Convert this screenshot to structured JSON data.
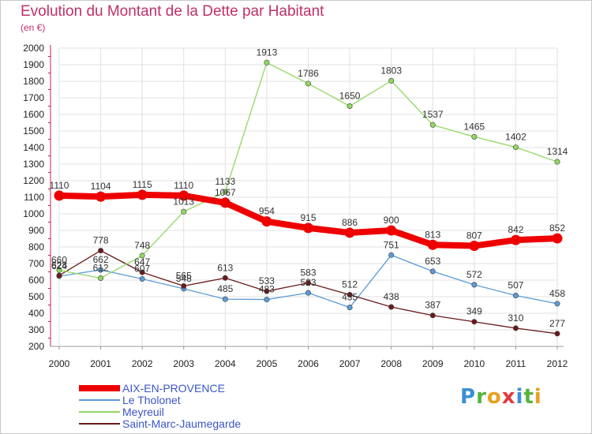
{
  "title": "Evolution du Montant de la Dette par Habitant",
  "subtitle": "(en €)",
  "logo": {
    "text": "Proxiti",
    "letters": [
      {
        "ch": "P",
        "color": "#3a8fd6"
      },
      {
        "ch": "r",
        "color": "#58b33b"
      },
      {
        "ch": "o",
        "color": "#e8a020"
      },
      {
        "ch": "x",
        "color": "#e03c3c"
      },
      {
        "ch": "i",
        "color": "#3a8fd6"
      },
      {
        "ch": "t",
        "color": "#58b33b"
      },
      {
        "ch": "i",
        "color": "#e8a020"
      }
    ]
  },
  "chart_data": {
    "type": "line",
    "x": [
      2000,
      2001,
      2002,
      2003,
      2004,
      2005,
      2006,
      2007,
      2008,
      2009,
      2010,
      2011,
      2012
    ],
    "ylim": [
      200,
      2000
    ],
    "yticks": [
      200,
      300,
      400,
      500,
      600,
      700,
      800,
      900,
      1000,
      1100,
      1200,
      1300,
      1400,
      1500,
      1600,
      1700,
      1800,
      1900,
      2000
    ],
    "grid": true,
    "legend_position": "bottom-left",
    "series": [
      {
        "name": "Le Tholonet",
        "color": "#5b9bd5",
        "values": [
          624,
          662,
          607,
          548,
          485,
          483,
          523,
          435,
          751,
          653,
          572,
          507,
          458
        ]
      },
      {
        "name": "Saint-Marc-Jaumegarde",
        "color": "#6b1a1a",
        "values": [
          628,
          778,
          647,
          565,
          613,
          533,
          583,
          512,
          438,
          387,
          349,
          310,
          277
        ]
      },
      {
        "name": "Meyreuil",
        "color": "#90d860",
        "values": [
          660,
          612,
          748,
          1013,
          1133,
          1913,
          1786,
          1650,
          1803,
          1537,
          1465,
          1402,
          1314
        ]
      },
      {
        "name": "AIX-EN-PROVENCE",
        "color": "#ee0000",
        "values": [
          1110,
          1104,
          1115,
          1110,
          1067,
          954,
          915,
          886,
          900,
          813,
          807,
          842,
          852
        ]
      }
    ],
    "legend": [
      "AIX-EN-PROVENCE",
      "Le Tholonet",
      "Meyreuil",
      "Saint-Marc-Jaumegarde"
    ]
  }
}
